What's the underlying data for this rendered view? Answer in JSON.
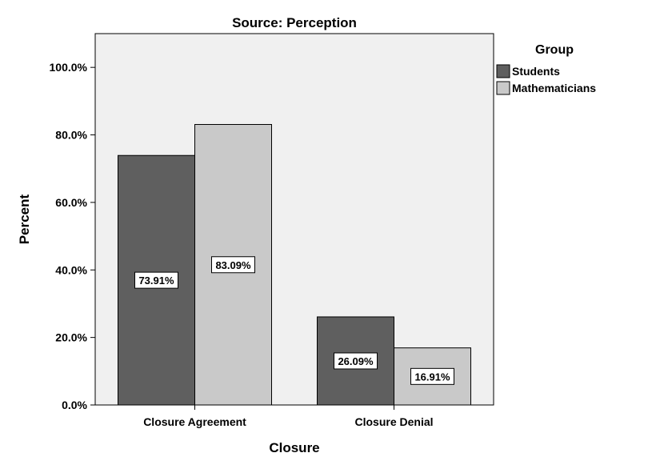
{
  "chart_data": {
    "type": "bar",
    "title": "Source: Perception",
    "xlabel": "Closure",
    "ylabel": "Percent",
    "categories": [
      "Closure Agreement",
      "Closure Denial"
    ],
    "series": [
      {
        "name": "Students",
        "values": [
          73.91,
          26.09
        ],
        "labels": [
          "73.91%",
          "26.09%"
        ],
        "color": "#5f5f5f"
      },
      {
        "name": "Mathematicians",
        "values": [
          83.09,
          16.91
        ],
        "labels": [
          "83.09%",
          "16.91%"
        ],
        "color": "#c9c9c9"
      }
    ],
    "ylim": [
      0,
      110
    ],
    "yticks": [
      0,
      20,
      40,
      60,
      80,
      100
    ],
    "ytick_labels": [
      "0.0%",
      "20.0%",
      "40.0%",
      "60.0%",
      "80.0%",
      "100.0%"
    ],
    "legend_title": "Group",
    "legend_position": "right",
    "grid": false,
    "plot_background": "#f0f0f0"
  }
}
